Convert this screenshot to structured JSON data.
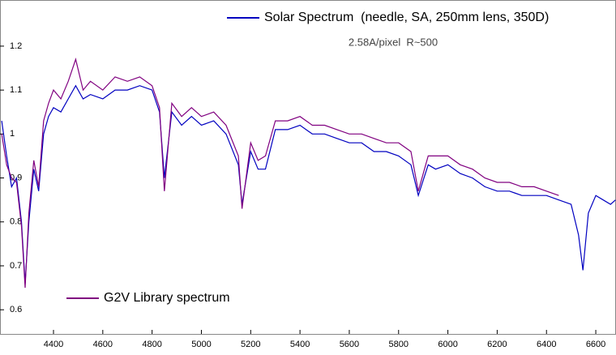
{
  "chart_data": {
    "type": "line",
    "subtitle": "2.58A/pixel  R~500",
    "x": [
      4190,
      4210,
      4230,
      4250,
      4270,
      4285,
      4300,
      4320,
      4340,
      4360,
      4380,
      4400,
      4430,
      4460,
      4490,
      4520,
      4550,
      4600,
      4650,
      4700,
      4750,
      4800,
      4830,
      4850,
      4880,
      4920,
      4960,
      5000,
      5050,
      5100,
      5150,
      5165,
      5200,
      5230,
      5260,
      5300,
      5350,
      5400,
      5450,
      5500,
      5550,
      5600,
      5650,
      5700,
      5750,
      5800,
      5850,
      5880,
      5920,
      5950,
      6000,
      6050,
      6100,
      6150,
      6200,
      6250,
      6300,
      6350,
      6400,
      6450,
      6500,
      6530,
      6548,
      6570,
      6600,
      6630,
      6660,
      6680
    ],
    "series": [
      {
        "name": "Solar Spectrum  (needle, SA, 250mm lens, 350D)",
        "color": "#0000c0",
        "values": [
          1.03,
          0.95,
          0.88,
          0.9,
          0.8,
          0.66,
          0.8,
          0.92,
          0.87,
          1.0,
          1.04,
          1.06,
          1.05,
          1.08,
          1.11,
          1.08,
          1.09,
          1.08,
          1.1,
          1.1,
          1.11,
          1.1,
          1.05,
          0.9,
          1.05,
          1.02,
          1.04,
          1.02,
          1.03,
          1.0,
          0.93,
          0.84,
          0.96,
          0.92,
          0.92,
          1.01,
          1.01,
          1.02,
          1.0,
          1.0,
          0.99,
          0.98,
          0.98,
          0.96,
          0.96,
          0.95,
          0.93,
          0.86,
          0.93,
          0.92,
          0.93,
          0.91,
          0.9,
          0.88,
          0.87,
          0.87,
          0.86,
          0.86,
          0.86,
          0.85,
          0.84,
          0.77,
          0.69,
          0.82,
          0.86,
          0.85,
          0.84,
          0.85
        ]
      },
      {
        "name": "G2V Library spectrum",
        "color": "#800080",
        "values": [
          1.0,
          0.93,
          0.9,
          0.89,
          0.79,
          0.65,
          0.82,
          0.94,
          0.88,
          1.03,
          1.07,
          1.1,
          1.08,
          1.12,
          1.17,
          1.1,
          1.12,
          1.1,
          1.13,
          1.12,
          1.13,
          1.11,
          1.06,
          0.87,
          1.07,
          1.04,
          1.06,
          1.04,
          1.05,
          1.02,
          0.95,
          0.83,
          0.98,
          0.94,
          0.95,
          1.03,
          1.03,
          1.04,
          1.02,
          1.02,
          1.01,
          1.0,
          1.0,
          0.99,
          0.98,
          0.98,
          0.96,
          0.87,
          0.95,
          0.95,
          0.95,
          0.93,
          0.92,
          0.9,
          0.89,
          0.89,
          0.88,
          0.88,
          0.87,
          0.86,
          null,
          null,
          null,
          null,
          null,
          null,
          null,
          null
        ]
      }
    ],
    "xlim": [
      4183,
      6682
    ],
    "ylim": [
      0.545,
      1.305
    ],
    "xticks": [
      4400,
      4600,
      4800,
      5000,
      5200,
      5400,
      5600,
      5800,
      6000,
      6200,
      6400,
      6600
    ],
    "yticks": [
      0.6,
      0.7,
      0.8,
      0.9,
      1,
      1.1,
      1.2
    ]
  }
}
